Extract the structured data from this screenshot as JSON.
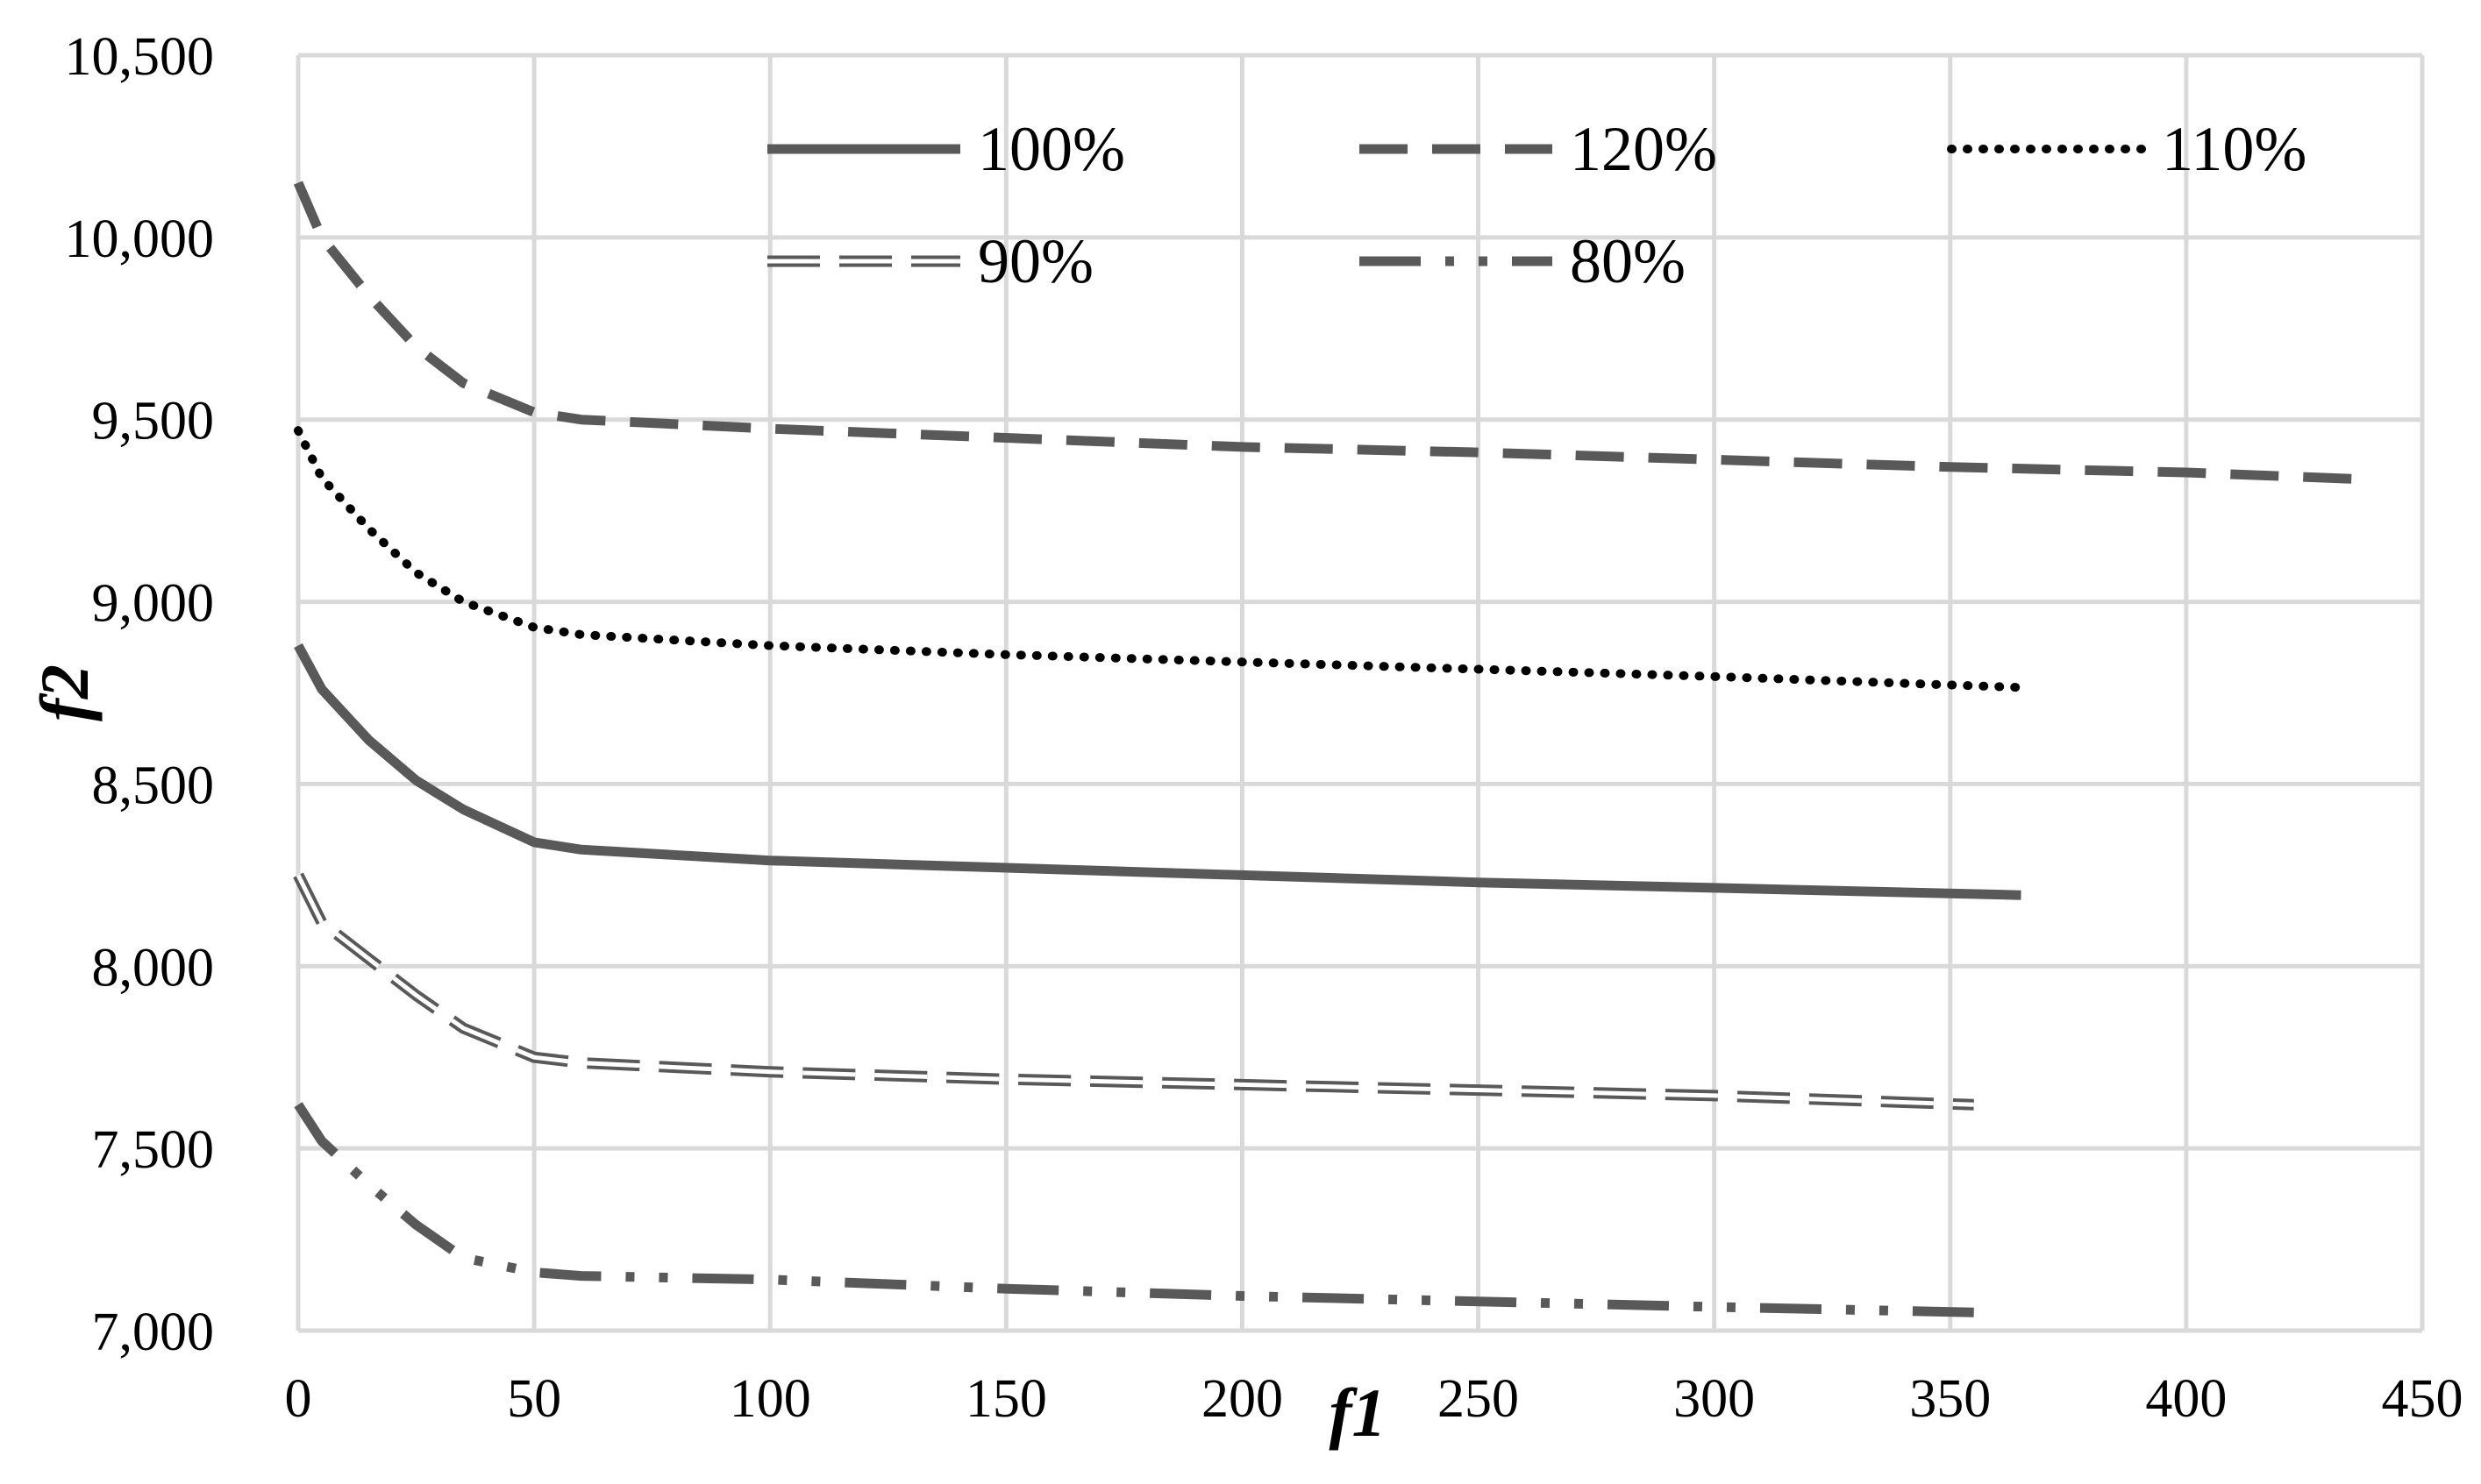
{
  "chart_data": {
    "type": "line",
    "title": "",
    "xlabel": "f1",
    "ylabel": "f2",
    "xlim": [
      0,
      450
    ],
    "ylim": [
      7000,
      10500
    ],
    "xticks": [
      0,
      50,
      100,
      150,
      200,
      250,
      300,
      350,
      400,
      450
    ],
    "yticks": [
      7000,
      7500,
      8000,
      8500,
      9000,
      9500,
      10000,
      10500
    ],
    "xtick_labels": [
      "0",
      "50",
      "100",
      "150",
      "200",
      "250",
      "300",
      "350",
      "400",
      "450"
    ],
    "ytick_labels": [
      "7,000",
      "7,500",
      "8,000",
      "8,500",
      "9,000",
      "9,500",
      "10,000",
      "10,500"
    ],
    "grid": true,
    "legend_position": "top-right inside",
    "series": [
      {
        "name": "100%",
        "style": "solid",
        "color": "#595959",
        "points": [
          [
            0,
            8880
          ],
          [
            5,
            8760
          ],
          [
            15,
            8620
          ],
          [
            25,
            8510
          ],
          [
            35,
            8430
          ],
          [
            50,
            8340
          ],
          [
            60,
            8320
          ],
          [
            100,
            8290
          ],
          [
            150,
            8270
          ],
          [
            200,
            8250
          ],
          [
            250,
            8230
          ],
          [
            300,
            8215
          ],
          [
            365,
            8195
          ]
        ]
      },
      {
        "name": "120%",
        "style": "dashed",
        "color": "#595959",
        "points": [
          [
            0,
            10150
          ],
          [
            5,
            10000
          ],
          [
            15,
            9840
          ],
          [
            25,
            9700
          ],
          [
            35,
            9600
          ],
          [
            50,
            9520
          ],
          [
            60,
            9500
          ],
          [
            100,
            9475
          ],
          [
            150,
            9450
          ],
          [
            200,
            9425
          ],
          [
            250,
            9410
          ],
          [
            300,
            9390
          ],
          [
            350,
            9370
          ],
          [
            400,
            9355
          ],
          [
            440,
            9335
          ]
        ]
      },
      {
        "name": "110%",
        "style": "dotted",
        "color": "#000000",
        "points": [
          [
            0,
            9470
          ],
          [
            5,
            9340
          ],
          [
            15,
            9200
          ],
          [
            25,
            9080
          ],
          [
            35,
            9000
          ],
          [
            50,
            8930
          ],
          [
            60,
            8910
          ],
          [
            100,
            8880
          ],
          [
            150,
            8855
          ],
          [
            200,
            8835
          ],
          [
            250,
            8815
          ],
          [
            300,
            8795
          ],
          [
            365,
            8765
          ]
        ]
      },
      {
        "name": "90%",
        "style": "double-dashed",
        "color": "#595959",
        "points": [
          [
            0,
            8250
          ],
          [
            5,
            8120
          ],
          [
            15,
            8020
          ],
          [
            25,
            7920
          ],
          [
            35,
            7830
          ],
          [
            50,
            7750
          ],
          [
            60,
            7735
          ],
          [
            100,
            7710
          ],
          [
            150,
            7690
          ],
          [
            200,
            7675
          ],
          [
            250,
            7660
          ],
          [
            300,
            7645
          ],
          [
            355,
            7620
          ]
        ]
      },
      {
        "name": "80%",
        "style": "dash-dot-dot",
        "color": "#595959",
        "points": [
          [
            0,
            7620
          ],
          [
            5,
            7520
          ],
          [
            15,
            7400
          ],
          [
            25,
            7290
          ],
          [
            35,
            7200
          ],
          [
            50,
            7160
          ],
          [
            60,
            7150
          ],
          [
            100,
            7140
          ],
          [
            150,
            7115
          ],
          [
            200,
            7095
          ],
          [
            250,
            7080
          ],
          [
            300,
            7065
          ],
          [
            355,
            7050
          ]
        ]
      }
    ]
  }
}
